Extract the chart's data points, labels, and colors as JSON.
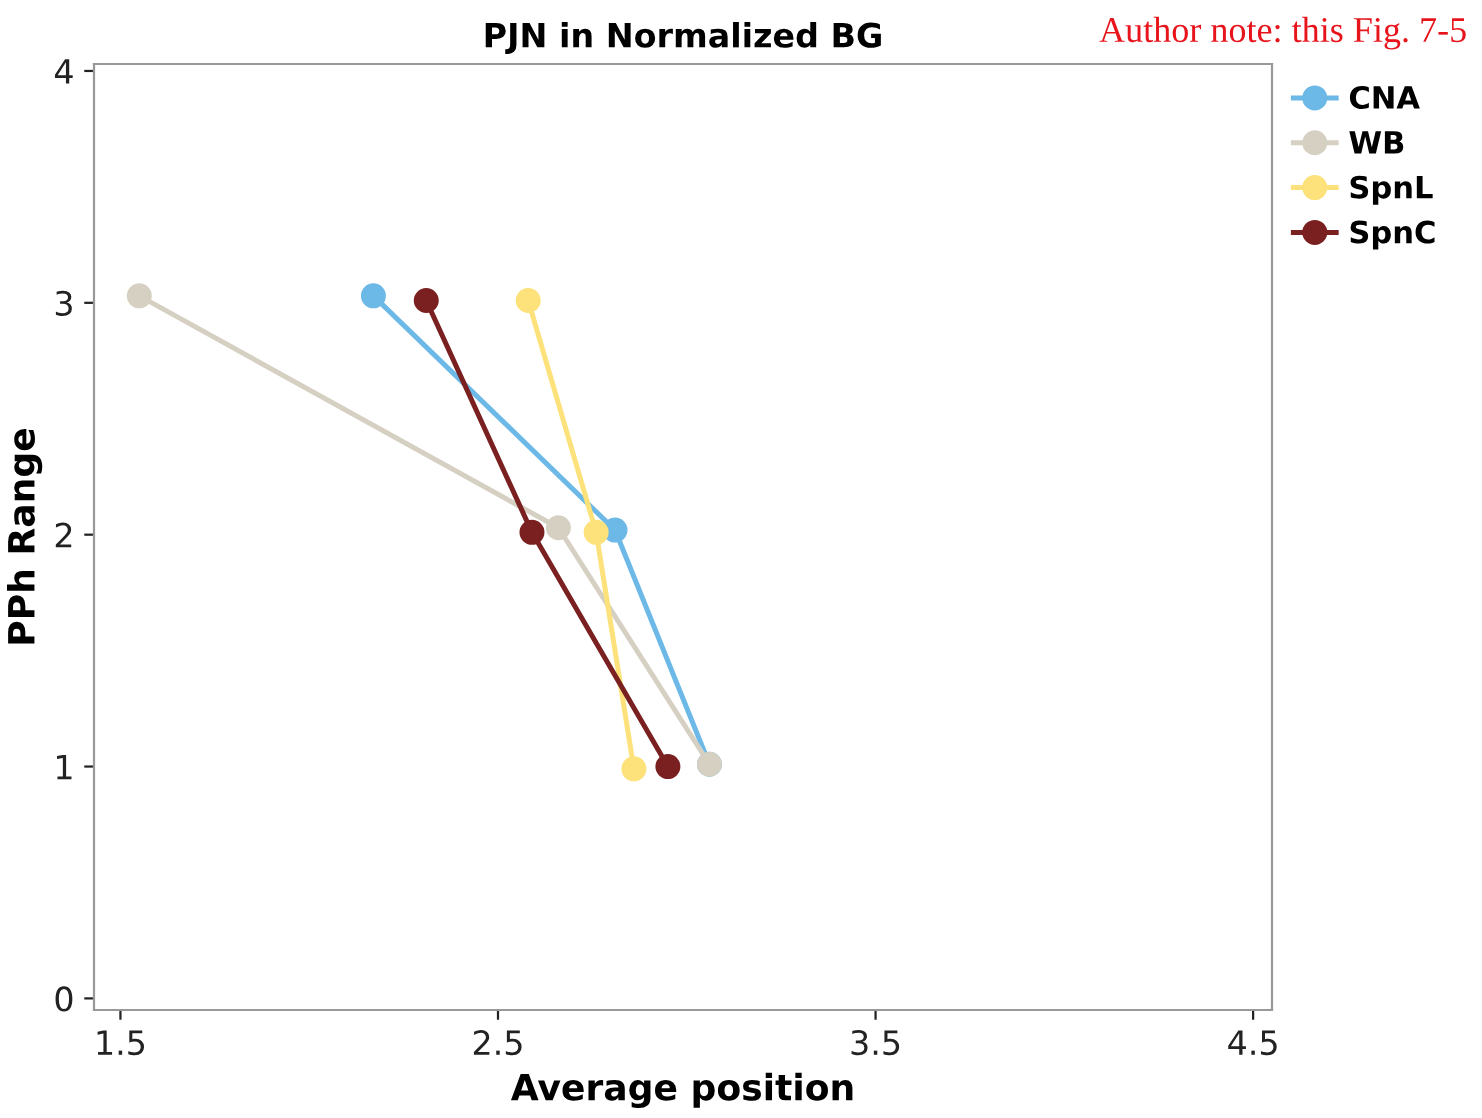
{
  "chart_data": {
    "type": "line",
    "title": "PJN in Normalized BG",
    "xlabel": "Average position",
    "ylabel": "PPh Range",
    "annotations": [
      "Author note: this Fig. 7-5"
    ],
    "series": [
      {
        "name": "CNA",
        "color": "#6cb8e6",
        "x": [
          2.17,
          2.81,
          3.06
        ],
        "values": [
          3.03,
          2.02,
          1.01
        ]
      },
      {
        "name": "WB",
        "color": "#d5d0c2",
        "x": [
          1.55,
          2.66,
          3.06
        ],
        "values": [
          3.03,
          2.03,
          1.01
        ]
      },
      {
        "name": "SpnL",
        "color": "#fde17a",
        "x": [
          2.58,
          2.76,
          2.86
        ],
        "values": [
          3.01,
          2.01,
          0.99
        ]
      },
      {
        "name": "SpnC",
        "color": "#7a2020",
        "x": [
          2.31,
          2.59,
          2.95
        ],
        "values": [
          3.01,
          2.01,
          1.0
        ]
      }
    ],
    "xlim": [
      1.43,
      4.55
    ],
    "ylim": [
      -0.05,
      4.03
    ],
    "xticks": [
      1.5,
      2.5,
      3.5,
      4.5
    ],
    "yticks": [
      0,
      1,
      2,
      3,
      4
    ],
    "grid": false,
    "legend": "top right",
    "marker": "circle",
    "line_style": "solid"
  }
}
